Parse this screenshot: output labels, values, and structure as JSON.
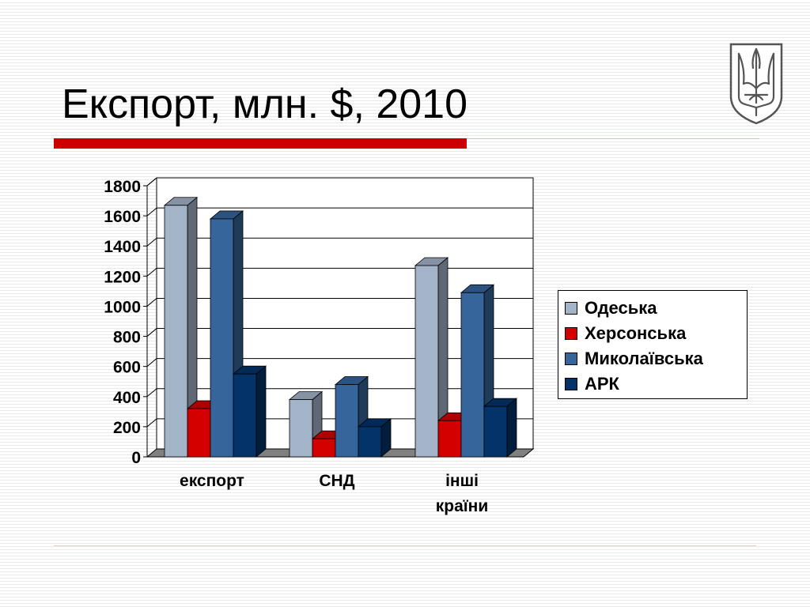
{
  "slide": {
    "title": "Експорт, млн. $, 2010"
  },
  "colors": {
    "accent_red": "#cc0000",
    "divider": "#d9c2b4",
    "emblem": "#555555"
  },
  "emblem": {
    "icon": "trident-coat-of-arms-icon"
  },
  "chart_data": {
    "type": "bar",
    "style": "3d-clustered",
    "categories": [
      "експорт",
      "СНД",
      "інші країни"
    ],
    "series": [
      {
        "name": "Одеська",
        "values": [
          1670,
          380,
          1270
        ],
        "color": "#a3b3c8"
      },
      {
        "name": "Херсонська",
        "values": [
          320,
          120,
          240
        ],
        "color": "#d40000"
      },
      {
        "name": "Миколаївська",
        "values": [
          1580,
          480,
          1090
        ],
        "color": "#36659c"
      },
      {
        "name": "АРК",
        "values": [
          550,
          200,
          335
        ],
        "color": "#04336a"
      }
    ],
    "ylim": [
      0,
      1800
    ],
    "yticks": [
      0,
      200,
      400,
      600,
      800,
      1000,
      1200,
      1400,
      1600,
      1800
    ],
    "grid": true,
    "legend_position": "right"
  }
}
